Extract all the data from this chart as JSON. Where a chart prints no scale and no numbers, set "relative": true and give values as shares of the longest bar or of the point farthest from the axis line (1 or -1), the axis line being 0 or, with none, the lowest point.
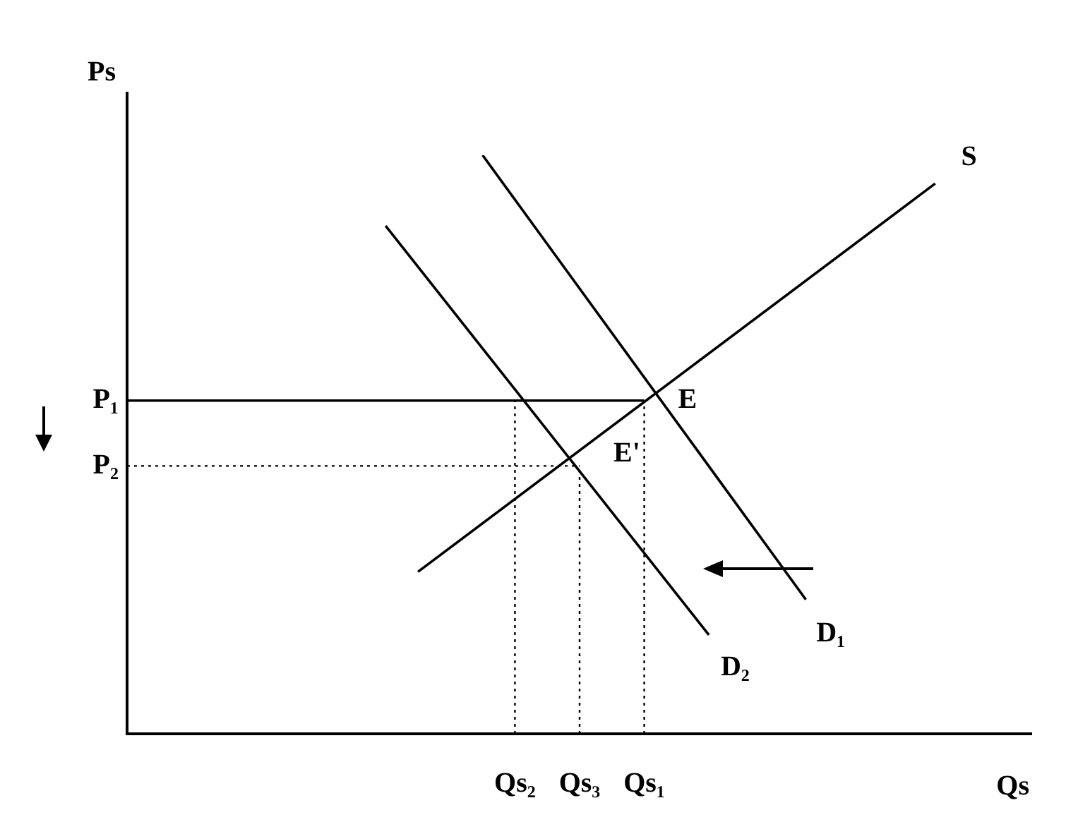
{
  "chart_data": {
    "type": "line",
    "relative": true,
    "xlabel": "Qs",
    "ylabel": "Ps",
    "legend": false,
    "marker": "none",
    "categories": [
      null,
      null,
      null,
      null,
      null,
      null,
      null,
      null,
      null,
      null,
      null,
      null,
      "Qs₂",
      null,
      "Qs₃",
      null,
      "Qs₁",
      null,
      null,
      null,
      null,
      null,
      null,
      null,
      null,
      null,
      null,
      null,
      null
    ],
    "series": [
      {
        "name": "S",
        "color": "#000000",
        "values": [
          null,
          null,
          null,
          null,
          null,
          null,
          null,
          null,
          null,
          0.28,
          null,
          null,
          null,
          null,
          null,
          null,
          null,
          null,
          null,
          null,
          null,
          null,
          null,
          null,
          null,
          0.951,
          null,
          null,
          null
        ]
      },
      {
        "name": "D₁",
        "color": "#000000",
        "values": [
          null,
          null,
          null,
          null,
          null,
          null,
          null,
          null,
          null,
          null,
          null,
          1.0,
          null,
          null,
          null,
          null,
          null,
          null,
          null,
          null,
          null,
          0.232,
          null,
          null,
          null,
          null,
          null,
          null,
          null
        ]
      },
      {
        "name": "D₂",
        "color": "#000000",
        "values": [
          null,
          null,
          null,
          null,
          null,
          null,
          null,
          null,
          0.878,
          null,
          null,
          null,
          null,
          null,
          null,
          null,
          null,
          null,
          0.171,
          null,
          null,
          null,
          null,
          null,
          null,
          null,
          null,
          null,
          null
        ]
      },
      {
        "name": "P₁",
        "color": "#000000",
        "line_style": "solid",
        "values": [
          0.576,
          null,
          null,
          null,
          null,
          null,
          null,
          null,
          null,
          null,
          null,
          null,
          null,
          null,
          null,
          null,
          0.576,
          null,
          null,
          null,
          null,
          null,
          null,
          null,
          null,
          null,
          null,
          null,
          null
        ]
      },
      {
        "name": "P₂",
        "color": "#000000",
        "line_style": "dotted",
        "values": [
          0.463,
          null,
          null,
          null,
          null,
          null,
          null,
          null,
          null,
          null,
          null,
          null,
          null,
          null,
          0.463,
          null,
          null,
          null,
          null,
          null,
          null,
          null,
          null,
          null,
          null,
          null,
          null,
          null,
          null
        ]
      }
    ],
    "ref_lines": [
      {
        "axis": "x",
        "value": "Qs₂",
        "line_style": "dotted",
        "color": "#000000"
      },
      {
        "axis": "x",
        "value": "Qs₃",
        "line_style": "dotted",
        "color": "#000000"
      },
      {
        "axis": "x",
        "value": "Qs₁",
        "line_style": "dotted",
        "color": "#000000"
      }
    ],
    "annotations": [
      {
        "text": "E",
        "x": "Qs₁",
        "y": 0.576
      },
      {
        "text": "E'",
        "x": "Qs₃",
        "y": 0.483
      }
    ]
  }
}
